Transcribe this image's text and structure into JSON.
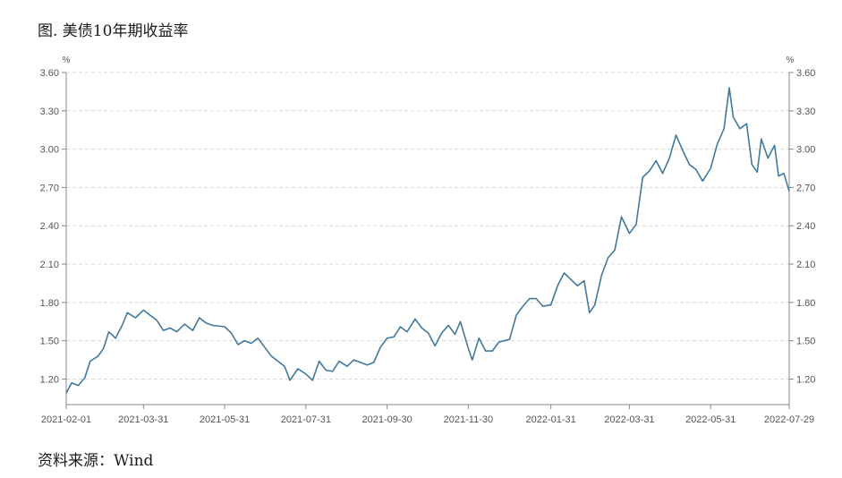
{
  "figure": {
    "title": "图. 美债10年期收益率",
    "source": "资料来源：Wind"
  },
  "chart_data": {
    "type": "line",
    "title": "图. 美债10年期收益率",
    "left_axis_unit": "%",
    "right_axis_unit": "%",
    "ylim": [
      1.0,
      3.6
    ],
    "y_ticks": [
      "3.60",
      "3.30",
      "3.00",
      "2.70",
      "2.40",
      "2.10",
      "1.80",
      "1.50",
      "1.20"
    ],
    "x_ticks": [
      "2021-02-01",
      "2021-03-31",
      "2021-05-31",
      "2021-07-31",
      "2021-09-30",
      "2021-11-30",
      "2022-01-31",
      "2022-03-31",
      "2022-05-31",
      "2022-07-29"
    ],
    "x_range": [
      "2021-02-01",
      "2022-07-29"
    ],
    "grid": true,
    "line_color": "#41789c",
    "series": [
      {
        "points": [
          [
            "2021-02-01",
            1.09
          ],
          [
            "2021-02-05",
            1.17
          ],
          [
            "2021-02-10",
            1.15
          ],
          [
            "2021-02-15",
            1.21
          ],
          [
            "2021-02-19",
            1.34
          ],
          [
            "2021-02-25",
            1.38
          ],
          [
            "2021-03-01",
            1.44
          ],
          [
            "2021-03-05",
            1.57
          ],
          [
            "2021-03-10",
            1.52
          ],
          [
            "2021-03-15",
            1.62
          ],
          [
            "2021-03-19",
            1.72
          ],
          [
            "2021-03-25",
            1.68
          ],
          [
            "2021-03-31",
            1.74
          ],
          [
            "2021-04-05",
            1.7
          ],
          [
            "2021-04-10",
            1.66
          ],
          [
            "2021-04-15",
            1.58
          ],
          [
            "2021-04-20",
            1.6
          ],
          [
            "2021-04-25",
            1.57
          ],
          [
            "2021-05-01",
            1.63
          ],
          [
            "2021-05-07",
            1.58
          ],
          [
            "2021-05-12",
            1.68
          ],
          [
            "2021-05-17",
            1.64
          ],
          [
            "2021-05-22",
            1.62
          ],
          [
            "2021-05-31",
            1.61
          ],
          [
            "2021-06-05",
            1.56
          ],
          [
            "2021-06-10",
            1.47
          ],
          [
            "2021-06-15",
            1.5
          ],
          [
            "2021-06-20",
            1.48
          ],
          [
            "2021-06-25",
            1.52
          ],
          [
            "2021-06-30",
            1.45
          ],
          [
            "2021-07-05",
            1.38
          ],
          [
            "2021-07-10",
            1.34
          ],
          [
            "2021-07-15",
            1.3
          ],
          [
            "2021-07-19",
            1.19
          ],
          [
            "2021-07-25",
            1.28
          ],
          [
            "2021-07-31",
            1.24
          ],
          [
            "2021-08-05",
            1.19
          ],
          [
            "2021-08-10",
            1.34
          ],
          [
            "2021-08-15",
            1.27
          ],
          [
            "2021-08-20",
            1.26
          ],
          [
            "2021-08-25",
            1.34
          ],
          [
            "2021-08-31",
            1.3
          ],
          [
            "2021-09-05",
            1.35
          ],
          [
            "2021-09-10",
            1.33
          ],
          [
            "2021-09-15",
            1.31
          ],
          [
            "2021-09-20",
            1.33
          ],
          [
            "2021-09-25",
            1.45
          ],
          [
            "2021-09-30",
            1.52
          ],
          [
            "2021-10-05",
            1.53
          ],
          [
            "2021-10-10",
            1.61
          ],
          [
            "2021-10-15",
            1.57
          ],
          [
            "2021-10-21",
            1.67
          ],
          [
            "2021-10-26",
            1.6
          ],
          [
            "2021-10-31",
            1.56
          ],
          [
            "2021-11-05",
            1.46
          ],
          [
            "2021-11-10",
            1.56
          ],
          [
            "2021-11-15",
            1.62
          ],
          [
            "2021-11-20",
            1.55
          ],
          [
            "2021-11-24",
            1.65
          ],
          [
            "2021-11-30",
            1.44
          ],
          [
            "2021-12-03",
            1.35
          ],
          [
            "2021-12-08",
            1.52
          ],
          [
            "2021-12-13",
            1.42
          ],
          [
            "2021-12-18",
            1.42
          ],
          [
            "2021-12-23",
            1.49
          ],
          [
            "2021-12-31",
            1.51
          ],
          [
            "2022-01-05",
            1.7
          ],
          [
            "2022-01-10",
            1.77
          ],
          [
            "2022-01-15",
            1.83
          ],
          [
            "2022-01-20",
            1.83
          ],
          [
            "2022-01-25",
            1.77
          ],
          [
            "2022-01-31",
            1.78
          ],
          [
            "2022-02-05",
            1.93
          ],
          [
            "2022-02-10",
            2.03
          ],
          [
            "2022-02-15",
            1.98
          ],
          [
            "2022-02-20",
            1.93
          ],
          [
            "2022-02-25",
            1.97
          ],
          [
            "2022-03-01",
            1.72
          ],
          [
            "2022-03-05",
            1.78
          ],
          [
            "2022-03-10",
            2.01
          ],
          [
            "2022-03-15",
            2.15
          ],
          [
            "2022-03-20",
            2.21
          ],
          [
            "2022-03-25",
            2.47
          ],
          [
            "2022-03-31",
            2.34
          ],
          [
            "2022-04-05",
            2.41
          ],
          [
            "2022-04-10",
            2.78
          ],
          [
            "2022-04-15",
            2.83
          ],
          [
            "2022-04-20",
            2.91
          ],
          [
            "2022-04-25",
            2.81
          ],
          [
            "2022-04-30",
            2.93
          ],
          [
            "2022-05-05",
            3.11
          ],
          [
            "2022-05-10",
            2.99
          ],
          [
            "2022-05-15",
            2.88
          ],
          [
            "2022-05-20",
            2.84
          ],
          [
            "2022-05-25",
            2.75
          ],
          [
            "2022-05-31",
            2.85
          ],
          [
            "2022-06-05",
            3.04
          ],
          [
            "2022-06-10",
            3.16
          ],
          [
            "2022-06-14",
            3.48
          ],
          [
            "2022-06-17",
            3.25
          ],
          [
            "2022-06-22",
            3.16
          ],
          [
            "2022-06-27",
            3.2
          ],
          [
            "2022-07-01",
            2.88
          ],
          [
            "2022-07-05",
            2.82
          ],
          [
            "2022-07-08",
            3.08
          ],
          [
            "2022-07-13",
            2.93
          ],
          [
            "2022-07-18",
            3.03
          ],
          [
            "2022-07-21",
            2.79
          ],
          [
            "2022-07-25",
            2.81
          ],
          [
            "2022-07-29",
            2.67
          ]
        ]
      }
    ]
  }
}
